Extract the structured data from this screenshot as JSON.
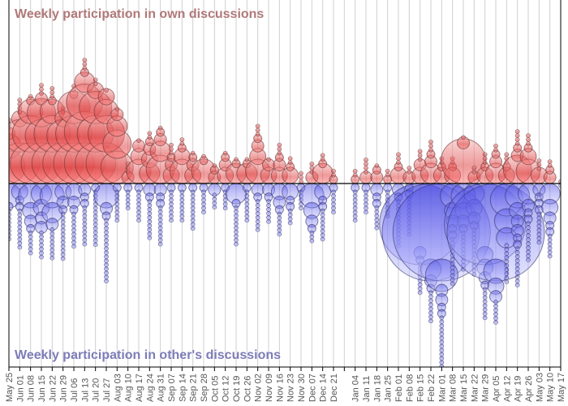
{
  "chart_data": {
    "type": "bubble",
    "title_top": "Weekly participation in own discussions",
    "title_bottom": "Weekly participation in other's discussions",
    "colors": {
      "own": "#f06060",
      "others": "#6060e8",
      "own_title": "#b07878",
      "others_title": "#7c7cb8"
    },
    "xlabel": "",
    "ylabel": "",
    "grid": true,
    "weeks": [
      {
        "label": "May 25",
        "own": [
          64,
          36,
          9
        ],
        "own_small": 3,
        "others": [
          36,
          4
        ],
        "others_small": 8
      },
      {
        "label": "Jun 01",
        "own": [
          100,
          64,
          16
        ],
        "own_small": 4,
        "others": [
          16,
          4,
          4
        ],
        "others_small": 10
      },
      {
        "label": "Jun 08",
        "own": [
          100,
          81,
          36,
          4
        ],
        "own_small": 1,
        "others": [
          36,
          16,
          9,
          4
        ],
        "others_small": 6
      },
      {
        "label": "Jun 15",
        "own": [
          100,
          64,
          49,
          9
        ],
        "own_small": 3,
        "others": [
          25,
          16,
          9,
          9
        ],
        "others_small": 7
      },
      {
        "label": "Jun 22",
        "own": [
          100,
          81,
          36,
          4
        ],
        "own_small": 3,
        "others": [
          36,
          25,
          9
        ],
        "others_small": 8
      },
      {
        "label": "Jun 29",
        "own": [
          100,
          64,
          16
        ],
        "own_small": 2,
        "others": [
          16,
          9,
          4
        ],
        "others_small": 12
      },
      {
        "label": "Jul 06",
        "own": [
          100,
          81,
          64,
          4
        ],
        "own_small": 2,
        "others": [
          16,
          9,
          4
        ],
        "others_small": 9
      },
      {
        "label": "Jul 13",
        "own": [
          100,
          100,
          81,
          25,
          4
        ],
        "own_small": 3,
        "others": [
          9,
          4,
          4
        ],
        "others_small": 10
      },
      {
        "label": "Jul 20",
        "own": [
          100,
          81,
          64,
          16
        ],
        "own_small": 2,
        "others": [
          4
        ],
        "others_small": 14
      },
      {
        "label": "Jul 27",
        "own": [
          100,
          81,
          36,
          16
        ],
        "own_small": 1,
        "others": [
          36,
          9,
          4
        ],
        "others_small": 16
      },
      {
        "label": "Aug 03",
        "own": [
          64,
          49,
          25,
          9
        ],
        "own_small": 1,
        "others": [
          4
        ],
        "others_small": 8
      },
      {
        "label": "Aug 10",
        "own": [
          9
        ],
        "own_small": 3,
        "others": [
          4
        ],
        "others_small": 5
      },
      {
        "label": "Aug 17",
        "own": [
          36,
          16,
          9
        ],
        "own_small": 1,
        "others": [
          4
        ],
        "others_small": 8
      },
      {
        "label": "Aug 24",
        "own": [
          25,
          16,
          9,
          4
        ],
        "own_small": 2,
        "others": [
          9,
          4
        ],
        "others_small": 10
      },
      {
        "label": "Aug 31",
        "own": [
          49,
          25,
          9,
          4
        ],
        "own_small": 1,
        "others": [
          9,
          4,
          4
        ],
        "others_small": 10
      },
      {
        "label": "Sep 07",
        "own": [
          16,
          9,
          4
        ],
        "own_small": 3,
        "others": [
          4
        ],
        "others_small": 8
      },
      {
        "label": "Sep 14",
        "own": [
          36,
          16,
          4
        ],
        "own_small": 2,
        "others": [
          4
        ],
        "others_small": 8
      },
      {
        "label": "Sep 21",
        "own": [
          16,
          9,
          4
        ],
        "own_small": 1,
        "others": [
          4
        ],
        "others_small": 10
      },
      {
        "label": "Sep 28",
        "own": [
          36,
          4
        ],
        "own_small": 1,
        "others": [
          4
        ],
        "others_small": 6
      },
      {
        "label": "Oct 05",
        "own": [
          9,
          4
        ],
        "own_small": 1,
        "others": [
          9
        ],
        "others_small": 4
      },
      {
        "label": "Oct 12",
        "own": [
          16,
          9,
          4
        ],
        "own_small": 1,
        "others": [
          4
        ],
        "others_small": 5
      },
      {
        "label": "Oct 19",
        "own": [
          25,
          4
        ],
        "own_small": 1,
        "others": [
          25,
          4
        ],
        "others_small": 10
      },
      {
        "label": "Oct 26",
        "own": [
          25,
          4
        ],
        "own_small": 1,
        "others": [
          4
        ],
        "others_small": 8
      },
      {
        "label": "Nov 02",
        "own": [
          36,
          16,
          9,
          4
        ],
        "own_small": 3,
        "others": [
          9,
          4
        ],
        "others_small": 8
      },
      {
        "label": "Nov 09",
        "own": [
          16,
          9
        ],
        "own_small": 1,
        "others": [
          9,
          4
        ],
        "others_small": 6
      },
      {
        "label": "Nov 16",
        "own": [
          16,
          9,
          4
        ],
        "own_small": 3,
        "others": [
          16,
          9,
          4
        ],
        "others_small": 6
      },
      {
        "label": "Nov 23",
        "own": [
          16,
          4
        ],
        "own_small": 2,
        "others": [
          16,
          4,
          4
        ],
        "others_small": 4
      },
      {
        "label": "Nov 30",
        "own": [],
        "own_small": 3,
        "others": [
          4
        ],
        "others_small": 5
      },
      {
        "label": "Dec 07",
        "own": [
          9
        ],
        "own_small": 3,
        "others": [
          36,
          16,
          9,
          4
        ],
        "others_small": 3
      },
      {
        "label": "Dec 14",
        "own": [
          25,
          4
        ],
        "own_small": 2,
        "others": [
          16,
          4,
          4
        ],
        "others_small": 8
      },
      {
        "label": "Dec 21",
        "own": [
          4
        ],
        "own_small": 2,
        "others": [
          4
        ],
        "others_small": 6
      },
      {
        "label": "",
        "own": [],
        "own_small": 0,
        "others": [],
        "others_small": 0
      },
      {
        "label": "Jan 04",
        "own": [
          4
        ],
        "own_small": 2,
        "others": [
          4
        ],
        "others_small": 8
      },
      {
        "label": "Jan 11",
        "own": [
          9
        ],
        "own_small": 4,
        "others": [
          4
        ],
        "others_small": 6
      },
      {
        "label": "Jan 18",
        "own": [
          9,
          4
        ],
        "own_small": 1,
        "others": [
          9,
          4,
          4
        ],
        "others_small": 6
      },
      {
        "label": "Jan 25",
        "own": [
          4
        ],
        "own_small": 2,
        "others": [
          4
        ],
        "others_small": 7
      },
      {
        "label": "Feb 01",
        "own": [
          16,
          4
        ],
        "own_small": 3,
        "others": [
          9,
          4
        ],
        "others_small": 12
      },
      {
        "label": "Feb 08",
        "own": [
          9
        ],
        "own_small": 2,
        "others": [
          4,
          4
        ],
        "others_small": 10
      },
      {
        "label": "Feb 15",
        "own": [
          16,
          9
        ],
        "own_small": 3,
        "others": [
          400,
          9,
          4
        ],
        "others_small": 8
      },
      {
        "label": "Feb 22",
        "own": [
          25,
          9,
          4
        ],
        "own_small": 3,
        "others": [
          576,
          25,
          9,
          4
        ],
        "others_small": 8
      },
      {
        "label": "Mar 01",
        "own": [
          16,
          4
        ],
        "own_small": 2,
        "others": [
          576,
          64,
          9,
          9,
          4,
          4
        ],
        "others_small": 14
      },
      {
        "label": "Mar 08",
        "own": [
          16,
          4
        ],
        "own_small": 2,
        "others": [
          36,
          16,
          9,
          4,
          4
        ],
        "others_small": 12
      },
      {
        "label": "Mar 15",
        "own": [
          121,
          9
        ],
        "own_small": 1,
        "others": [
          36,
          16,
          9,
          4
        ],
        "others_small": 10
      },
      {
        "label": "Mar 22",
        "own": [
          9
        ],
        "own_small": 2,
        "others": [
          25,
          16,
          9,
          4
        ],
        "others_small": 12
      },
      {
        "label": "Mar 29",
        "own": [
          16,
          4
        ],
        "own_small": 3,
        "others": [
          400,
          16,
          16,
          9,
          4
        ],
        "others_small": 8
      },
      {
        "label": "Apr 05",
        "own": [
          25,
          9,
          4
        ],
        "own_small": 2,
        "others": [
          576,
          36,
          16,
          9
        ],
        "others_small": 6
      },
      {
        "label": "Apr 12",
        "own": [
          16,
          4
        ],
        "own_small": 3,
        "others": [
          64,
          36,
          25
        ],
        "others_small": 10
      },
      {
        "label": "Apr 19",
        "own": [
          49,
          9,
          4
        ],
        "own_small": 4,
        "others": [
          36,
          16,
          9,
          9,
          4,
          4
        ],
        "others_small": 10
      },
      {
        "label": "Apr 26",
        "own": [
          36,
          16,
          4
        ],
        "own_small": 3,
        "others": [
          25,
          9,
          4,
          4
        ],
        "others_small": 10
      },
      {
        "label": "May 03",
        "own": [
          16
        ],
        "own_small": 3,
        "others": [
          9,
          4,
          4,
          4
        ],
        "others_small": 8
      },
      {
        "label": "May 10",
        "own": [
          9,
          4
        ],
        "own_small": 2,
        "others": [
          25,
          16,
          9,
          4,
          4
        ],
        "others_small": 6
      },
      {
        "label": "May 17",
        "own": [],
        "own_small": 1,
        "others": [],
        "others_small": 1
      }
    ]
  }
}
